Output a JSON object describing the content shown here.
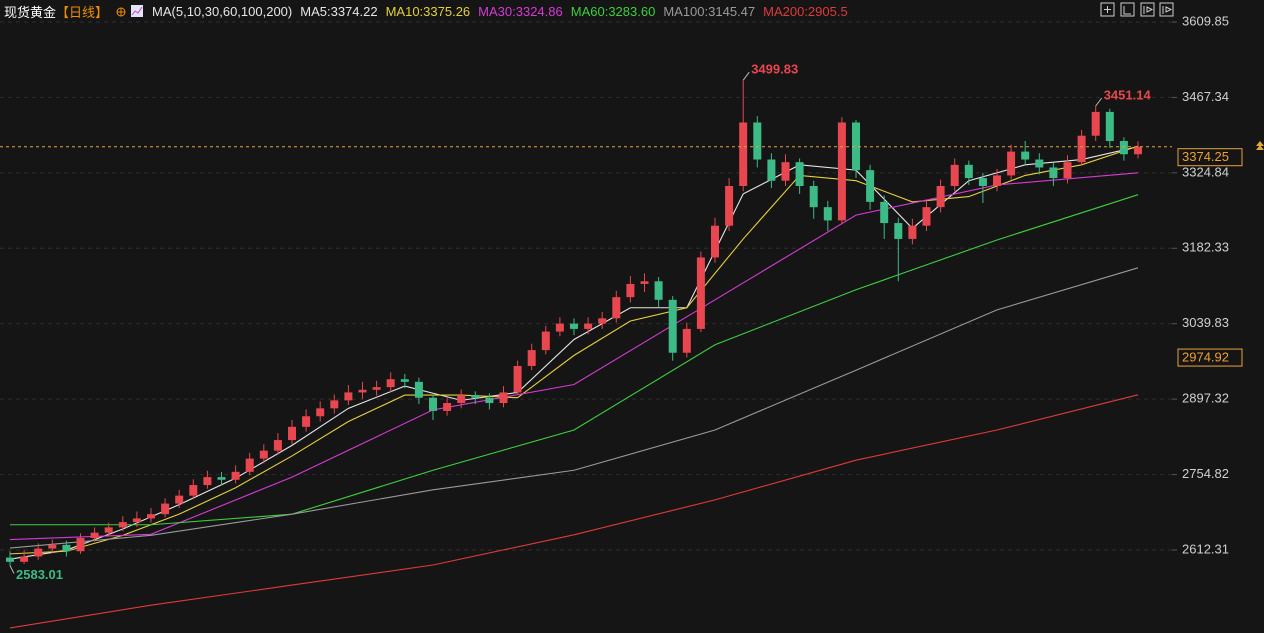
{
  "chart_data": {
    "type": "candlestick",
    "title": "现货黄金",
    "period": "【日线】",
    "ma_settings": "MA(5,10,30,60,100,200)",
    "up_color": "#e8474f",
    "down_color": "#3dbb87",
    "open": [
      2598,
      2590,
      2600,
      2615,
      2622,
      2610,
      2635,
      2645,
      2655,
      2665,
      2672,
      2680,
      2700,
      2715,
      2735,
      2750,
      2745,
      2760,
      2785,
      2800,
      2820,
      2845,
      2865,
      2880,
      2895,
      2910,
      2915,
      2920,
      2935,
      2930,
      2900,
      2875,
      2890,
      2905,
      2900,
      2890,
      2910,
      2960,
      2990,
      3025,
      3040,
      3030,
      3040,
      3050,
      3090,
      3115,
      3120,
      3085,
      2985,
      3030,
      3165,
      3225,
      3300,
      3420,
      3350,
      3310,
      3345,
      3300,
      3260,
      3235,
      3420,
      3330,
      3270,
      3230,
      3200,
      3225,
      3260,
      3300,
      3340,
      3315,
      3300,
      3320,
      3365,
      3350,
      3335,
      3315,
      3345,
      3395,
      3440,
      3385,
      3360
    ],
    "high": [
      2610,
      2612,
      2625,
      2632,
      2630,
      2644,
      2655,
      2664,
      2676,
      2685,
      2692,
      2710,
      2726,
      2746,
      2762,
      2760,
      2772,
      2796,
      2812,
      2833,
      2858,
      2878,
      2893,
      2906,
      2924,
      2930,
      2932,
      2948,
      2945,
      2938,
      2906,
      2900,
      2916,
      2912,
      2908,
      2922,
      2970,
      3002,
      3036,
      3052,
      3050,
      3052,
      3062,
      3102,
      3130,
      3135,
      3128,
      3092,
      3042,
      3176,
      3240,
      3315,
      3499.83,
      3432,
      3362,
      3360,
      3352,
      3310,
      3272,
      3430,
      3425,
      3340,
      3282,
      3240,
      3238,
      3272,
      3312,
      3352,
      3348,
      3325,
      3332,
      3378,
      3385,
      3362,
      3344,
      3358,
      3406,
      3451.14,
      3446,
      3392,
      3384
    ],
    "low": [
      2583.01,
      2586,
      2594,
      2606,
      2600,
      2605,
      2628,
      2638,
      2648,
      2656,
      2664,
      2674,
      2692,
      2708,
      2728,
      2734,
      2738,
      2754,
      2776,
      2792,
      2812,
      2836,
      2855,
      2870,
      2886,
      2898,
      2904,
      2910,
      2918,
      2888,
      2858,
      2866,
      2880,
      2888,
      2878,
      2882,
      2905,
      2952,
      2982,
      3016,
      3018,
      3020,
      3030,
      3042,
      3080,
      3100,
      3070,
      2970,
      2976,
      3024,
      3155,
      3215,
      3290,
      3335,
      3296,
      3300,
      3285,
      3238,
      3215,
      3228,
      3315,
      3255,
      3200,
      3120,
      3190,
      3215,
      3250,
      3290,
      3302,
      3268,
      3290,
      3312,
      3340,
      3322,
      3300,
      3305,
      3338,
      3385,
      3372,
      3348,
      3352
    ],
    "close": [
      2590,
      2600,
      2615,
      2622,
      2610,
      2635,
      2645,
      2655,
      2665,
      2672,
      2680,
      2700,
      2715,
      2735,
      2750,
      2745,
      2760,
      2785,
      2800,
      2820,
      2845,
      2865,
      2880,
      2895,
      2910,
      2915,
      2920,
      2935,
      2930,
      2900,
      2875,
      2890,
      2905,
      2900,
      2890,
      2910,
      2960,
      2990,
      3025,
      3040,
      3030,
      3040,
      3050,
      3090,
      3115,
      3120,
      3085,
      2985,
      3030,
      3165,
      3225,
      3300,
      3420,
      3350,
      3310,
      3345,
      3300,
      3260,
      3235,
      3420,
      3330,
      3270,
      3230,
      3200,
      3225,
      3260,
      3300,
      3340,
      3315,
      3300,
      3320,
      3365,
      3350,
      3335,
      3315,
      3345,
      3395,
      3440,
      3385,
      3360,
      3374.25
    ],
    "series": [
      {
        "name": "MA5:3374.22",
        "color": "#e6e6e6",
        "x": [
          0,
          4,
          8,
          12,
          16,
          20,
          24,
          28,
          32,
          36,
          40,
          44,
          48,
          52,
          56,
          60,
          64,
          68,
          72,
          76,
          80
        ],
        "values": [
          2595,
          2612,
          2652,
          2698,
          2748,
          2810,
          2880,
          2922,
          2895,
          2910,
          3010,
          3070,
          3070,
          3285,
          3340,
          3330,
          3220,
          3310,
          3340,
          3350,
          3374.22
        ]
      },
      {
        "name": "MA10:3375.26",
        "color": "#e6d03a",
        "x": [
          0,
          4,
          8,
          12,
          16,
          20,
          24,
          28,
          32,
          36,
          40,
          44,
          48,
          52,
          56,
          60,
          64,
          68,
          72,
          76,
          80
        ],
        "values": [
          2605,
          2610,
          2640,
          2680,
          2730,
          2790,
          2855,
          2905,
          2905,
          2900,
          2980,
          3045,
          3070,
          3200,
          3320,
          3310,
          3270,
          3280,
          3320,
          3340,
          3375.26
        ]
      },
      {
        "name": "MA30:3324.86",
        "color": "#d63ad6",
        "x": [
          0,
          10,
          20,
          30,
          40,
          50,
          60,
          70,
          80
        ],
        "values": [
          2632,
          2642,
          2750,
          2877,
          2925,
          3085,
          3245,
          3302,
          3324.86
        ]
      },
      {
        "name": "MA60:3283.60",
        "color": "#3ecf3e",
        "x": [
          0,
          10,
          20,
          30,
          40,
          50,
          60,
          70,
          80
        ],
        "values": [
          2660,
          2660,
          2680,
          2763,
          2839,
          3000,
          3104,
          3198,
          3283.6
        ]
      },
      {
        "name": "MA100:3145.47",
        "color": "#9a9a9a",
        "x": [
          0,
          10,
          20,
          30,
          40,
          50,
          60,
          70,
          80
        ],
        "values": [
          2616,
          2640,
          2680,
          2726,
          2763,
          2839,
          2952,
          3066,
          3145.47
        ]
      },
      {
        "name": "MA200:2905.5",
        "color": "#e03a3a",
        "x": [
          0,
          10,
          20,
          30,
          40,
          50,
          60,
          70,
          80
        ],
        "values": [
          2465,
          2508,
          2546,
          2584,
          2641,
          2707,
          2782,
          2839,
          2905.5
        ]
      }
    ],
    "ylim": [
      2455.5,
      3651.4
    ],
    "yticks": [
      2612.31,
      2754.82,
      2897.32,
      3039.83,
      3182.33,
      3324.84,
      3467.34,
      3609.85
    ],
    "grid": true,
    "price_line_color": "#e8a33a",
    "marker_price": 2974.92
  }
}
